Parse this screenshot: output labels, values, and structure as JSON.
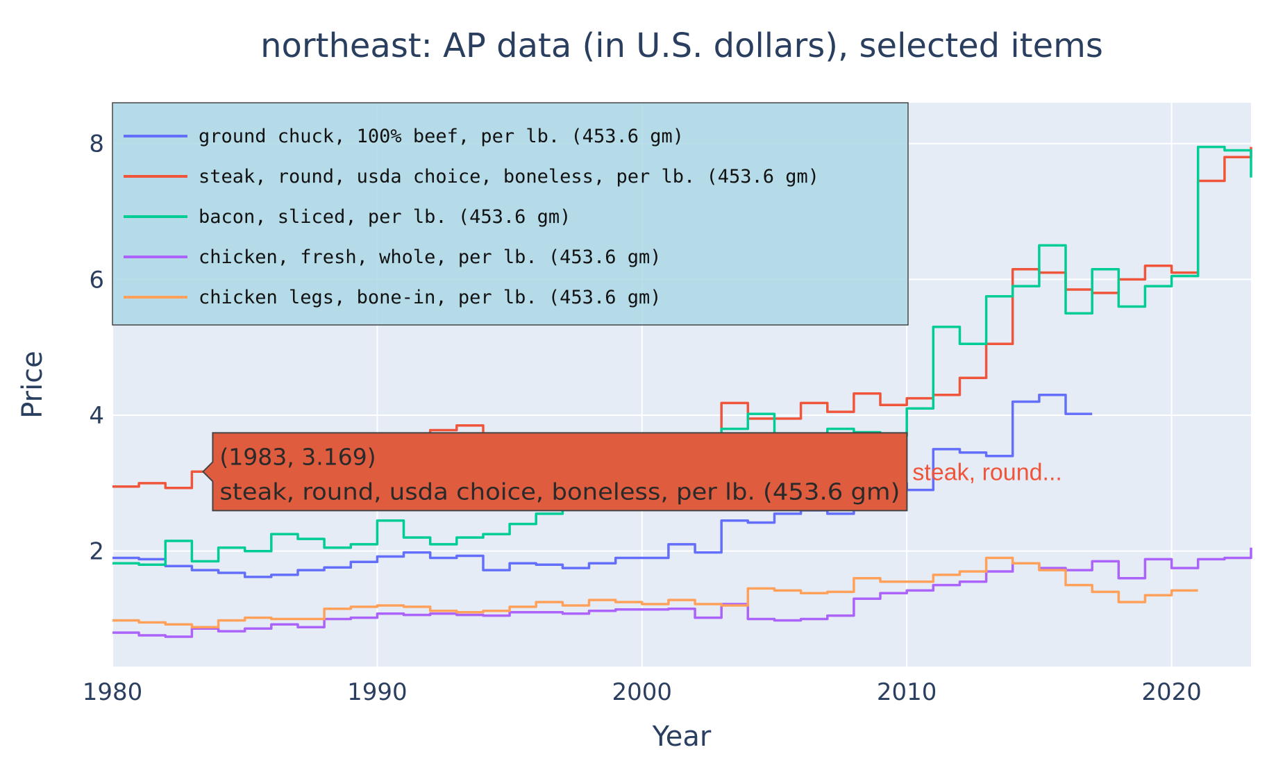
{
  "chart_data": {
    "type": "line",
    "title": "northeast: AP data (in U.S. dollars), selected items",
    "xlabel": "Year",
    "ylabel": "Price",
    "xlim": [
      1980,
      2023
    ],
    "ylim": [
      0.3,
      8.6
    ],
    "xticks": [
      1980,
      1990,
      2000,
      2010,
      2020
    ],
    "yticks": [
      2,
      4,
      6,
      8
    ],
    "grid": true,
    "legend_position": "top-left",
    "series": [
      {
        "name": "ground chuck, 100% beef, per lb. (453.6 gm)",
        "color": "#636efa",
        "points": [
          [
            1980,
            1.9
          ],
          [
            1981,
            1.88
          ],
          [
            1982,
            1.78
          ],
          [
            1983,
            1.72
          ],
          [
            1984,
            1.68
          ],
          [
            1985,
            1.62
          ],
          [
            1986,
            1.65
          ],
          [
            1987,
            1.72
          ],
          [
            1988,
            1.76
          ],
          [
            1989,
            1.84
          ],
          [
            1990,
            1.92
          ],
          [
            1991,
            1.98
          ],
          [
            1992,
            1.9
          ],
          [
            1993,
            1.93
          ],
          [
            1994,
            1.72
          ],
          [
            1995,
            1.82
          ],
          [
            1996,
            1.8
          ],
          [
            1997,
            1.75
          ],
          [
            1998,
            1.82
          ],
          [
            1999,
            1.9
          ],
          [
            2000,
            1.9
          ],
          [
            2001,
            2.1
          ],
          [
            2002,
            1.98
          ],
          [
            2003,
            2.45
          ],
          [
            2004,
            2.42
          ],
          [
            2005,
            2.55
          ],
          [
            2006,
            2.6
          ],
          [
            2007,
            2.55
          ],
          [
            2008,
            2.8
          ],
          [
            2009,
            3.0
          ],
          [
            2010,
            2.9
          ],
          [
            2011,
            3.5
          ],
          [
            2012,
            3.45
          ],
          [
            2013,
            3.4
          ],
          [
            2014,
            4.2
          ],
          [
            2015,
            4.3
          ],
          [
            2016,
            4.02
          ]
        ]
      },
      {
        "name": "steak, round, usda choice, boneless, per lb. (453.6 gm)",
        "color": "#ef553b",
        "points": [
          [
            1980,
            2.95
          ],
          [
            1981,
            3.0
          ],
          [
            1982,
            2.93
          ],
          [
            1983,
            3.169
          ],
          [
            1984,
            3.2
          ],
          [
            1985,
            3.3
          ],
          [
            1986,
            3.4
          ],
          [
            1987,
            3.5
          ],
          [
            1988,
            3.6
          ],
          [
            1989,
            3.6
          ],
          [
            1990,
            3.65
          ],
          [
            1991,
            3.72
          ],
          [
            1992,
            3.78
          ],
          [
            1993,
            3.85
          ],
          [
            1994,
            3.6
          ],
          [
            1995,
            3.55
          ],
          [
            1996,
            3.55
          ],
          [
            1997,
            3.5
          ],
          [
            1998,
            3.5
          ],
          [
            1999,
            3.55
          ],
          [
            2000,
            3.6
          ],
          [
            2001,
            3.6
          ],
          [
            2002,
            3.65
          ],
          [
            2003,
            4.18
          ],
          [
            2004,
            3.95
          ],
          [
            2005,
            3.95
          ],
          [
            2006,
            4.18
          ],
          [
            2007,
            4.05
          ],
          [
            2008,
            4.32
          ],
          [
            2009,
            4.15
          ],
          [
            2010,
            4.25
          ],
          [
            2011,
            4.3
          ],
          [
            2012,
            4.55
          ],
          [
            2013,
            5.05
          ],
          [
            2014,
            6.15
          ],
          [
            2015,
            6.1
          ],
          [
            2016,
            5.85
          ],
          [
            2017,
            5.8
          ],
          [
            2018,
            6.0
          ],
          [
            2019,
            6.2
          ],
          [
            2020,
            6.1
          ],
          [
            2021,
            7.45
          ],
          [
            2022,
            7.8
          ],
          [
            2023,
            7.95
          ]
        ]
      },
      {
        "name": "bacon, sliced, per lb. (453.6 gm)",
        "color": "#00cc96",
        "points": [
          [
            1980,
            1.82
          ],
          [
            1981,
            1.8
          ],
          [
            1982,
            2.15
          ],
          [
            1983,
            1.85
          ],
          [
            1984,
            2.05
          ],
          [
            1985,
            2.0
          ],
          [
            1986,
            2.25
          ],
          [
            1987,
            2.18
          ],
          [
            1988,
            2.05
          ],
          [
            1989,
            2.1
          ],
          [
            1990,
            2.45
          ],
          [
            1991,
            2.2
          ],
          [
            1992,
            2.1
          ],
          [
            1993,
            2.2
          ],
          [
            1994,
            2.25
          ],
          [
            1995,
            2.4
          ],
          [
            1996,
            2.55
          ],
          [
            1997,
            2.7
          ],
          [
            1998,
            2.9
          ],
          [
            1999,
            3.1
          ],
          [
            2000,
            3.2
          ],
          [
            2001,
            3.3
          ],
          [
            2002,
            3.5
          ],
          [
            2003,
            3.8
          ],
          [
            2004,
            4.02
          ],
          [
            2005,
            3.7
          ],
          [
            2006,
            3.65
          ],
          [
            2007,
            3.8
          ],
          [
            2008,
            3.75
          ],
          [
            2009,
            3.7
          ],
          [
            2010,
            4.1
          ],
          [
            2011,
            5.3
          ],
          [
            2012,
            5.05
          ],
          [
            2013,
            5.75
          ],
          [
            2014,
            5.9
          ],
          [
            2015,
            6.5
          ],
          [
            2016,
            5.5
          ],
          [
            2017,
            6.15
          ],
          [
            2018,
            5.6
          ],
          [
            2019,
            5.9
          ],
          [
            2020,
            6.05
          ],
          [
            2021,
            7.95
          ],
          [
            2022,
            7.9
          ],
          [
            2023,
            7.5
          ]
        ]
      },
      {
        "name": "chicken, fresh, whole, per lb. (453.6 gm)",
        "color": "#ab63fa",
        "points": [
          [
            1980,
            0.8
          ],
          [
            1981,
            0.76
          ],
          [
            1982,
            0.74
          ],
          [
            1983,
            0.86
          ],
          [
            1984,
            0.82
          ],
          [
            1985,
            0.86
          ],
          [
            1986,
            0.92
          ],
          [
            1987,
            0.88
          ],
          [
            1988,
            1.0
          ],
          [
            1989,
            1.02
          ],
          [
            1990,
            1.08
          ],
          [
            1991,
            1.06
          ],
          [
            1992,
            1.08
          ],
          [
            1993,
            1.06
          ],
          [
            1994,
            1.05
          ],
          [
            1995,
            1.1
          ],
          [
            1996,
            1.1
          ],
          [
            1997,
            1.08
          ],
          [
            1998,
            1.12
          ],
          [
            1999,
            1.14
          ],
          [
            2000,
            1.14
          ],
          [
            2001,
            1.15
          ],
          [
            2002,
            1.02
          ],
          [
            2003,
            1.22
          ],
          [
            2004,
            1.0
          ],
          [
            2005,
            0.98
          ],
          [
            2006,
            1.0
          ],
          [
            2007,
            1.05
          ],
          [
            2008,
            1.3
          ],
          [
            2009,
            1.38
          ],
          [
            2010,
            1.42
          ],
          [
            2011,
            1.5
          ],
          [
            2012,
            1.55
          ],
          [
            2013,
            1.7
          ],
          [
            2014,
            1.82
          ],
          [
            2015,
            1.75
          ],
          [
            2016,
            1.72
          ],
          [
            2017,
            1.85
          ],
          [
            2018,
            1.6
          ],
          [
            2019,
            1.88
          ],
          [
            2020,
            1.75
          ],
          [
            2021,
            1.88
          ],
          [
            2022,
            1.9
          ],
          [
            2023,
            2.05
          ]
        ]
      },
      {
        "name": "chicken legs, bone-in, per lb. (453.6 gm)",
        "color": "#ffa15a",
        "points": [
          [
            1980,
            0.98
          ],
          [
            1981,
            0.95
          ],
          [
            1982,
            0.92
          ],
          [
            1983,
            0.88
          ],
          [
            1984,
            0.98
          ],
          [
            1985,
            1.02
          ],
          [
            1986,
            1.0
          ],
          [
            1987,
            1.0
          ],
          [
            1988,
            1.15
          ],
          [
            1989,
            1.18
          ],
          [
            1990,
            1.2
          ],
          [
            1991,
            1.18
          ],
          [
            1992,
            1.12
          ],
          [
            1993,
            1.1
          ],
          [
            1994,
            1.12
          ],
          [
            1995,
            1.18
          ],
          [
            1996,
            1.25
          ],
          [
            1997,
            1.2
          ],
          [
            1998,
            1.28
          ],
          [
            1999,
            1.25
          ],
          [
            2000,
            1.22
          ],
          [
            2001,
            1.28
          ],
          [
            2002,
            1.22
          ],
          [
            2003,
            1.2
          ],
          [
            2004,
            1.45
          ],
          [
            2005,
            1.42
          ],
          [
            2006,
            1.38
          ],
          [
            2007,
            1.4
          ],
          [
            2008,
            1.6
          ],
          [
            2009,
            1.55
          ],
          [
            2010,
            1.55
          ],
          [
            2011,
            1.65
          ],
          [
            2012,
            1.7
          ],
          [
            2013,
            1.9
          ],
          [
            2014,
            1.82
          ],
          [
            2015,
            1.72
          ],
          [
            2016,
            1.5
          ],
          [
            2017,
            1.4
          ],
          [
            2018,
            1.25
          ],
          [
            2019,
            1.35
          ],
          [
            2020,
            1.42
          ]
        ]
      }
    ],
    "hover": {
      "x": 1983,
      "y": 3.169,
      "series_index": 1,
      "value_text": "(1983, 3.169)",
      "name_text": "steak, round, usda choice, boneless, per lb. (453.6 gm)",
      "spike_label": "steak, round..."
    }
  }
}
